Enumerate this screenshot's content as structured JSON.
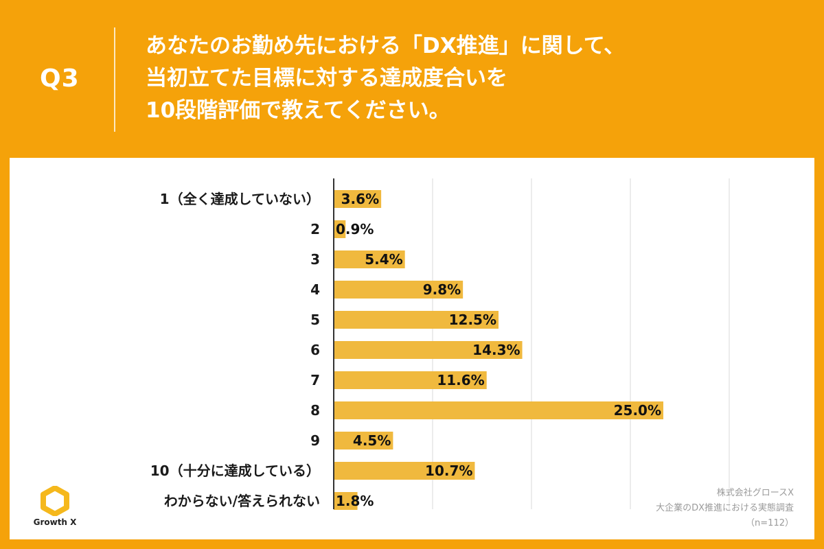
{
  "header": {
    "question_no": "Q3",
    "title_lines": [
      "あなたのお勤め先における「DX推進」に関して、",
      "当初立てた目標に対する達成度合いを",
      "10段階評価で教えてください。"
    ]
  },
  "colors": {
    "background": "#F5A20A",
    "bar": "#F0B93E",
    "grid": "#d9d9d9",
    "axis": "#333333"
  },
  "chart_data": {
    "type": "bar",
    "orientation": "horizontal",
    "categories": [
      "1（全く達成していない）",
      "2",
      "3",
      "4",
      "5",
      "6",
      "7",
      "8",
      "9",
      "10（十分に達成している）",
      "わからない/答えられない"
    ],
    "values": [
      3.6,
      0.9,
      5.4,
      9.8,
      12.5,
      14.3,
      11.6,
      25.0,
      4.5,
      10.7,
      1.8
    ],
    "value_labels": [
      "3.6%",
      "0.9%",
      "5.4%",
      "9.8%",
      "12.5%",
      "14.3%",
      "11.6%",
      "25.0%",
      "4.5%",
      "10.7%",
      "1.8%"
    ],
    "xlim": [
      0,
      30
    ],
    "gridlines": [
      0,
      7.5,
      15,
      22.5,
      30
    ],
    "unit": "%",
    "title": "",
    "xlabel": "",
    "ylabel": ""
  },
  "source": {
    "company": "株式会社グロースX",
    "survey": "大企業のDX推進における実態調査",
    "sample": "（n=112）"
  },
  "logo": {
    "name": "logo-hexagon-icon",
    "text": "Growth X"
  }
}
